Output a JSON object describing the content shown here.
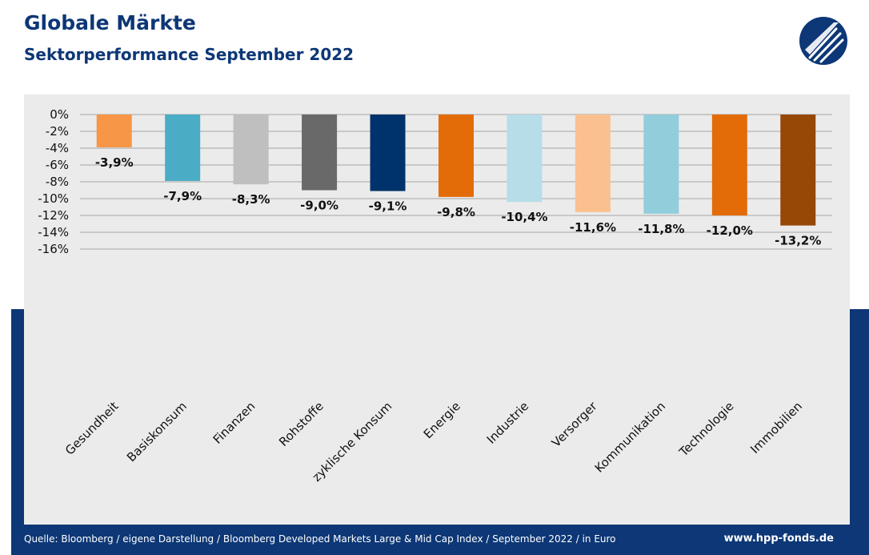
{
  "header": {
    "title": "Globale Märkte",
    "subtitle": "Sektorperformance September 2022",
    "logo": "hpp-logo-icon"
  },
  "footer": {
    "source": "Quelle: Bloomberg / eigene Darstellung / Bloomberg Developed Markets Large & Mid Cap Index / September 2022 / in Euro",
    "url": "www.hpp-fonds.de"
  },
  "colors": {
    "brand": "#0d3776",
    "panel": "#ebebeb"
  },
  "chart_data": {
    "type": "bar",
    "categories": [
      "Gesundheit",
      "Basiskonsum",
      "Finanzen",
      "Rohstoffe",
      "zyklische Konsum",
      "Energie",
      "Industrie",
      "Versorger",
      "Kommunikation",
      "Technologie",
      "Immobilien"
    ],
    "values": [
      -3.9,
      -7.9,
      -8.3,
      -9.0,
      -9.1,
      -9.8,
      -10.4,
      -11.6,
      -11.8,
      -12.0,
      -13.2
    ],
    "value_labels": [
      "-3,9%",
      "-7,9%",
      "-8,3%",
      "-9,0%",
      "-9,1%",
      "-9,8%",
      "-10,4%",
      "-11,6%",
      "-11,8%",
      "-12,0%",
      "-13,2%"
    ],
    "colors": [
      "#f79646",
      "#4bacc6",
      "#bfbfbf",
      "#696969",
      "#00336b",
      "#e36c09",
      "#b7dde8",
      "#fac08f",
      "#92cddc",
      "#e36c09",
      "#974806"
    ],
    "yticks": [
      0,
      -2,
      -4,
      -6,
      -8,
      -10,
      -12,
      -14,
      -16
    ],
    "ytick_labels": [
      "0%",
      "-2%",
      "-4%",
      "-6%",
      "-8%",
      "-10%",
      "-12%",
      "-14%",
      "-16%"
    ],
    "ylim": [
      -16,
      0
    ],
    "grid": true,
    "legend": "none"
  }
}
